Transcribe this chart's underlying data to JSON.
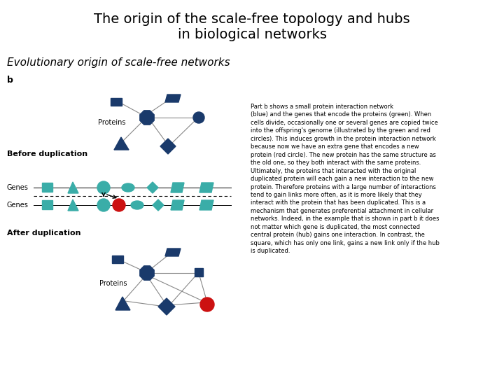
{
  "title": "The origin of the scale-free topology and hubs\nin biological networks",
  "subtitle": "Evolutionary origin of scale-free networks",
  "title_fontsize": 14,
  "subtitle_fontsize": 11,
  "bg_color": "#ffffff",
  "dark_blue": "#1a3a6b",
  "teal": "#3aada8",
  "red": "#cc1111",
  "body_text": "Part b shows a small protein interaction network\n(blue) and the genes that encode the proteins (green). When\ncells divide, occasionally one or several genes are copied twice\ninto the offspring's genome (illustrated by the green and red\ncircles). This induces growth in the protein interaction network\nbecause now we have an extra gene that encodes a new\nprotein (red circle). The new protein has the same structure as\nthe old one, so they both interact with the same proteins.\nUltimately, the proteins that interacted with the original\nduplicated protein will each gain a new interaction to the new\nprotein. Therefore proteins with a large number of interactions\ntend to gain links more often, as it is more likely that they\ninteract with the protein that has been duplicated. This is a\nmechanism that generates preferential attachment in cellular\nnetworks. Indeed, in the example that is shown in part b it does\nnot matter which gene is duplicated, the most connected\ncentral protein (hub) gains one interaction. In contrast, the\nsquare, which has only one link, gains a new link only if the hub\nis duplicated."
}
